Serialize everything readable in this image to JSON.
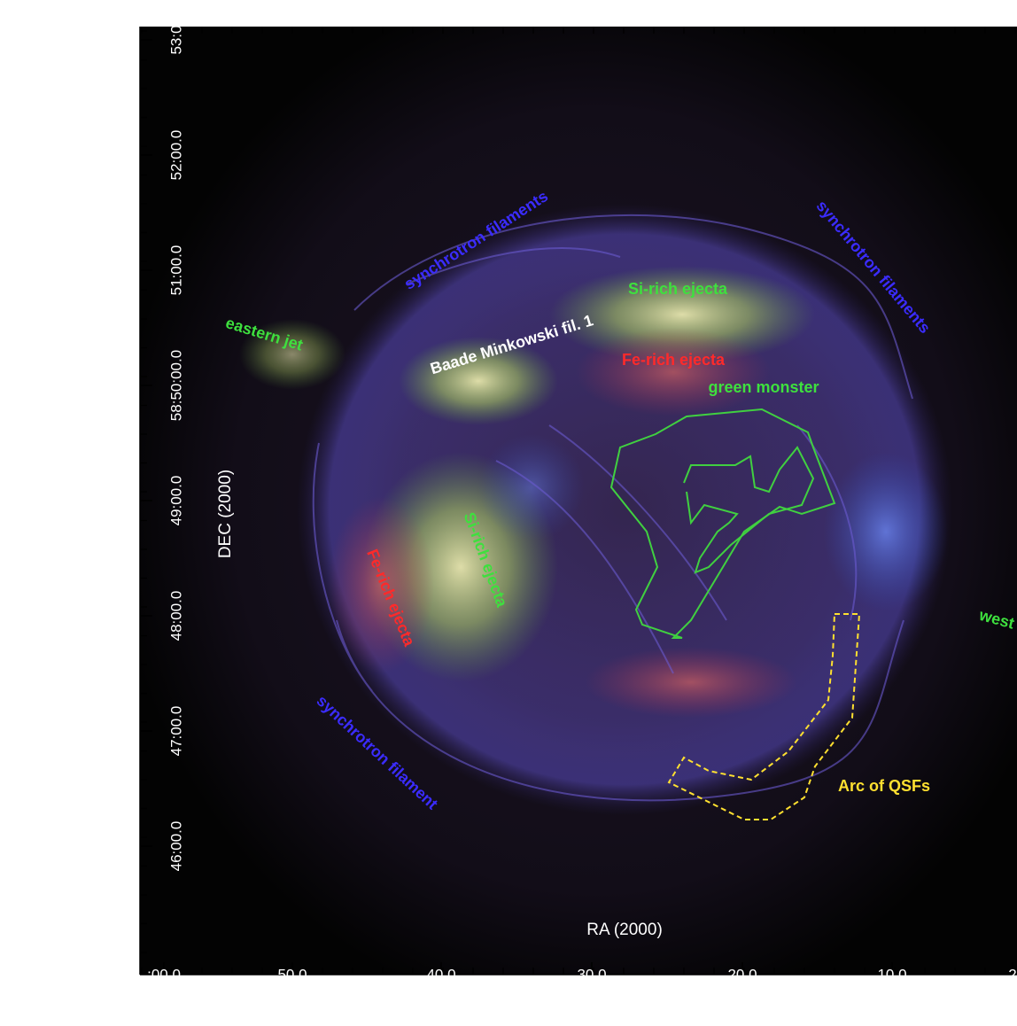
{
  "image": {
    "y_axis": {
      "title": "DEC (2000)",
      "ticks": [
        "53:0",
        "52:00.0",
        "51:00.0",
        "58:50:00.0",
        "49:00.0",
        "48:00.0",
        "47:00.0",
        "46:00.0"
      ]
    },
    "x_axis": {
      "title": "RA (2000)",
      "ticks": [
        ":00.0",
        "50.0",
        "40.0",
        "30.0",
        "20.0",
        "10.0",
        "2"
      ]
    },
    "annotations": [
      "synchrotron filaments",
      "synchrotron filaments",
      "eastern jet",
      "Si-rich ejecta",
      "Baade Minkowski fil. 1",
      "Fe-rich ejecta",
      "green monster",
      "Si-rich ejecta",
      "Fe-rich ejecta",
      "synchrotron filament",
      "west",
      "Arc of QSFs"
    ]
  }
}
